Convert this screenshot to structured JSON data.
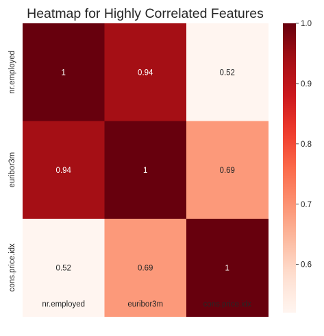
{
  "chart_data": {
    "type": "heatmap",
    "title": "Heatmap for Highly Correlated Features",
    "x_categories": [
      "nr.employed",
      "euribor3m",
      "cons.price.idx"
    ],
    "y_categories": [
      "nr.employed",
      "euribor3m",
      "cons.price.idx"
    ],
    "values": [
      [
        1,
        0.94,
        0.52
      ],
      [
        0.94,
        1,
        0.69
      ],
      [
        0.52,
        0.69,
        1
      ]
    ],
    "annotations": [
      [
        "1",
        "0.94",
        "0.52"
      ],
      [
        "0.94",
        "1",
        "0.69"
      ],
      [
        "0.52",
        "0.69",
        "1"
      ]
    ],
    "colormap": "Reds",
    "colorbar": {
      "vmin": 0.52,
      "vmax": 1.0,
      "ticks": [
        0.6,
        0.7,
        0.8,
        0.9,
        1.0
      ],
      "tick_labels": [
        "0.6",
        "0.7",
        "0.8",
        "0.9",
        "1.0"
      ]
    },
    "colors": {
      "low": "#fff5f0",
      "high": "#67000d",
      "annotation_dark_text": "#262626",
      "annotation_light_text": "#ffffff"
    }
  }
}
